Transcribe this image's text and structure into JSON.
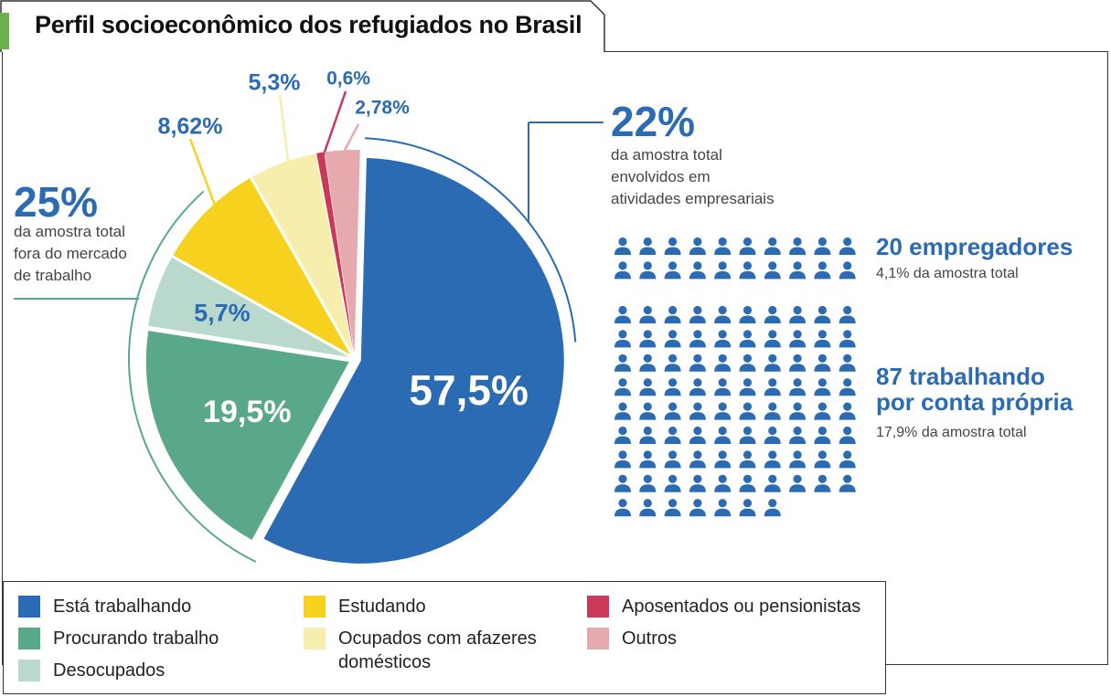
{
  "title": "Perfil socioeconômico dos refugiados no Brasil",
  "colors": {
    "trabalhando": "#2a6bb3",
    "procurando": "#5aa88a",
    "desocupados": "#b9d9cc",
    "estudando": "#f6d21f",
    "afazeres": "#f7eeae",
    "aposentados": "#c8395a",
    "outros": "#e6a9ad",
    "accent": "#2a6bb3",
    "tab_marker": "#6ab04c"
  },
  "chart_data": {
    "type": "pie",
    "slices": [
      {
        "key": "trabalhando",
        "label": "57,5%",
        "value": 57.5
      },
      {
        "key": "procurando",
        "label": "19,5%",
        "value": 19.5
      },
      {
        "key": "desocupados",
        "label": "5,7%",
        "value": 5.7
      },
      {
        "key": "estudando",
        "label": "8,62%",
        "value": 8.62
      },
      {
        "key": "afazeres",
        "label": "5,3%",
        "value": 5.3
      },
      {
        "key": "aposentados",
        "label": "0,6%",
        "value": 0.6
      },
      {
        "key": "outros",
        "label": "2,78%",
        "value": 2.78
      }
    ],
    "legend": [
      {
        "key": "trabalhando",
        "label": "Está trabalhando"
      },
      {
        "key": "procurando",
        "label": "Procurando trabalho"
      },
      {
        "key": "desocupados",
        "label": "Desocupados"
      },
      {
        "key": "estudando",
        "label": "Estudando"
      },
      {
        "key": "afazeres",
        "label": "Ocupados com afazeres\ndomésticos"
      },
      {
        "key": "aposentados",
        "label": "Aposentados ou pensionistas"
      },
      {
        "key": "outros",
        "label": "Outros"
      }
    ],
    "callouts": {
      "fora_mercado": {
        "pct": "25%",
        "text": [
          "da amostra total",
          "fora do mercado",
          "de trabalho"
        ]
      },
      "empresariais": {
        "pct": "22%",
        "text": [
          "da amostra total",
          "envolvidos em",
          "atividades empresariais"
        ]
      }
    },
    "icon_groups": [
      {
        "count": 20,
        "headline": [
          "20 empregadores"
        ],
        "sub": "4,1% da amostra total"
      },
      {
        "count": 87,
        "headline": [
          "87 trabalhando",
          "por conta própria"
        ],
        "sub": "17,9% da amostra total"
      }
    ]
  }
}
